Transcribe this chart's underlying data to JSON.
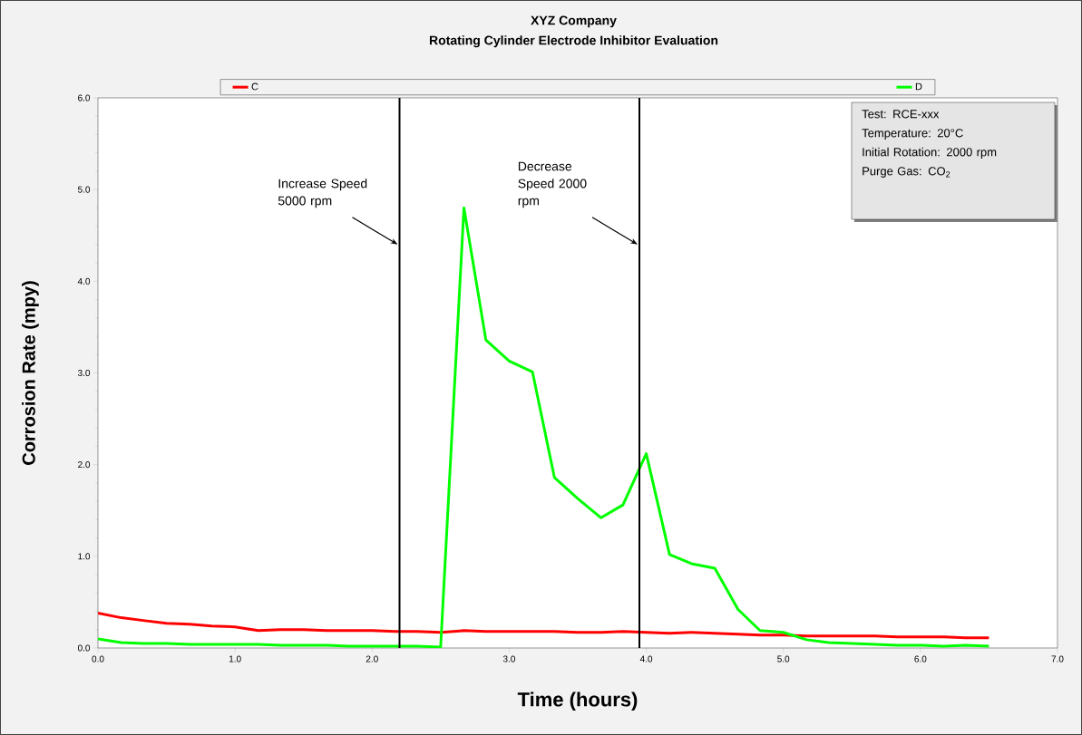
{
  "chart_data": {
    "type": "line",
    "title": "XYZ Company",
    "subtitle": "Rotating Cylinder Electrode Inhibitor Evaluation",
    "xlabel": "Time (hours)",
    "ylabel": "Corrosion Rate (mpy)",
    "x": [
      0,
      0.17,
      0.33,
      0.5,
      0.67,
      0.83,
      1,
      1.17,
      1.33,
      1.5,
      1.67,
      1.83,
      2,
      2.17,
      2.33,
      2.5,
      2.67,
      2.83,
      3,
      3.17,
      3.33,
      3.5,
      3.67,
      3.83,
      4,
      4.17,
      4.33,
      4.5,
      4.67,
      4.83,
      5,
      5.17,
      5.33,
      5.5,
      5.67,
      5.83,
      6,
      6.17,
      6.33,
      6.5
    ],
    "series": [
      {
        "name": "C",
        "color": "#ff0000",
        "values": [
          0.38,
          0.33,
          0.3,
          0.27,
          0.26,
          0.24,
          0.23,
          0.19,
          0.2,
          0.2,
          0.19,
          0.19,
          0.19,
          0.18,
          0.18,
          0.17,
          0.19,
          0.18,
          0.18,
          0.18,
          0.18,
          0.17,
          0.17,
          0.18,
          0.17,
          0.16,
          0.17,
          0.16,
          0.15,
          0.14,
          0.14,
          0.13,
          0.13,
          0.13,
          0.13,
          0.12,
          0.12,
          0.12,
          0.11,
          0.11
        ]
      },
      {
        "name": "D",
        "color": "#00ff00",
        "values": [
          0.1,
          0.06,
          0.05,
          0.05,
          0.04,
          0.04,
          0.04,
          0.04,
          0.03,
          0.03,
          0.03,
          0.02,
          0.02,
          0.02,
          0.02,
          0.01,
          4.8,
          3.36,
          3.13,
          3.01,
          1.86,
          1.63,
          1.42,
          1.56,
          2.12,
          1.02,
          0.92,
          0.87,
          0.42,
          0.19,
          0.17,
          0.09,
          0.06,
          0.05,
          0.04,
          0.03,
          0.03,
          0.02,
          0.03,
          0.02
        ]
      }
    ],
    "xlim": [
      0,
      7
    ],
    "ylim": [
      0,
      6
    ],
    "xticks": [
      {
        "value": 0,
        "label": "0.0"
      },
      {
        "value": 1,
        "label": "1.0"
      },
      {
        "value": 2,
        "label": "2.0"
      },
      {
        "value": 3,
        "label": "3.0"
      },
      {
        "value": 4,
        "label": "4.0"
      },
      {
        "value": 5,
        "label": "5.0"
      },
      {
        "value": 6,
        "label": "6.0"
      },
      {
        "value": 7,
        "label": "7.0"
      }
    ],
    "yticks": [
      {
        "value": 0,
        "label": "0.0"
      },
      {
        "value": 1,
        "label": "1.0"
      },
      {
        "value": 2,
        "label": "2.0"
      },
      {
        "value": 3,
        "label": "3.0"
      },
      {
        "value": 4,
        "label": "4.0"
      },
      {
        "value": 5,
        "label": "5.0"
      },
      {
        "value": 6,
        "label": "6.0"
      }
    ],
    "ref_lines": [
      {
        "axis": "x",
        "value": 2.2,
        "label": "Increase Speed 5000 rpm",
        "color": "#000000"
      },
      {
        "axis": "x",
        "value": 3.95,
        "label": "Decrease Speed 2000 rpm",
        "color": "#000000"
      }
    ],
    "annotations": [
      "Test: RCE-xxx",
      "Temperature: 20°C",
      "Initial Rotation: 2000 rpm",
      "Purge Gas: CO$_{2}$"
    ],
    "legend": "top",
    "grid": false
  }
}
